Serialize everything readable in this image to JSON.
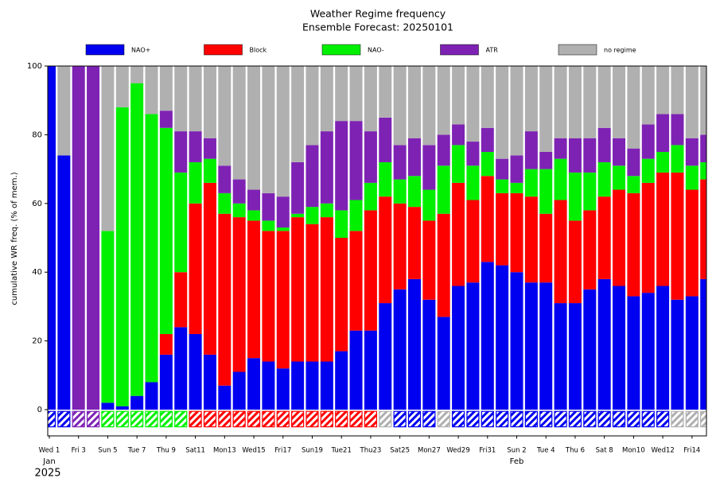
{
  "chart_data": {
    "type": "stacked-bar",
    "title": "Weather Regime frequency",
    "subtitle": "Ensemble Forecast: 20250101",
    "y_label": "cumulative WR freq. (% of mem.)",
    "categories": [
      "Wed 1",
      null,
      "Fri 3",
      null,
      "Sun 5",
      null,
      "Tue 7",
      null,
      "Thu 9",
      null,
      "Sat11",
      null,
      "Mon13",
      null,
      "Wed15",
      null,
      "Fri17",
      null,
      "Sun19",
      null,
      "Tue21",
      null,
      "Thu23",
      null,
      "Sat25",
      null,
      "Mon27",
      null,
      "Wed29",
      null,
      "Fri31",
      null,
      "Sun 2",
      null,
      "Tue 4",
      null,
      "Thu 6",
      null,
      "Sat 8",
      null,
      "Mon10",
      null,
      "Wed12",
      null,
      "Fri14",
      null
    ],
    "category_label_colors": [
      "#000",
      null,
      "#000",
      null,
      "#e00000",
      null,
      "#000",
      null,
      "#000",
      null,
      "#000",
      null,
      "#000",
      null,
      "#000",
      null,
      "#000",
      null,
      "#e00000",
      null,
      "#000",
      null,
      "#000",
      null,
      "#000",
      null,
      "#000",
      null,
      "#000",
      null,
      "#000",
      null,
      "#e00000",
      null,
      "#000",
      null,
      "#000",
      null,
      "#000",
      null,
      "#000",
      null,
      "#000",
      null,
      "#000",
      null
    ],
    "month_labels": [
      {
        "label": "Jan",
        "category": 0
      },
      {
        "label": "Feb",
        "category": 32
      }
    ],
    "year_label": "2025",
    "series": [
      {
        "name": "NAO+",
        "color": "#0000f0",
        "values": [
          100,
          74,
          0,
          0,
          2,
          1,
          4,
          8,
          16,
          24,
          22,
          16,
          7,
          11,
          15,
          14,
          12,
          14,
          14,
          14,
          17,
          23,
          23,
          31,
          35,
          38,
          32,
          27,
          36,
          37,
          43,
          42,
          40,
          37,
          37,
          31,
          31,
          35,
          38,
          36,
          33,
          34,
          36,
          32,
          33,
          38
        ]
      },
      {
        "name": "Block",
        "color": "#ff0000",
        "values": [
          0,
          0,
          0,
          0,
          0,
          0,
          0,
          0,
          6,
          16,
          38,
          50,
          50,
          45,
          40,
          38,
          40,
          42,
          40,
          42,
          33,
          29,
          35,
          31,
          25,
          21,
          23,
          30,
          30,
          24,
          25,
          21,
          23,
          25,
          20,
          30,
          24,
          23,
          24,
          28,
          30,
          32,
          33,
          37,
          31,
          29
        ]
      },
      {
        "name": "NAO-",
        "color": "#00f000",
        "values": [
          0,
          0,
          0,
          0,
          50,
          87,
          91,
          78,
          60,
          29,
          12,
          7,
          6,
          4,
          3,
          3,
          1,
          1,
          5,
          4,
          8,
          9,
          8,
          10,
          7,
          9,
          9,
          14,
          11,
          10,
          7,
          4,
          3,
          8,
          13,
          12,
          14,
          11,
          10,
          7,
          5,
          7,
          6,
          8,
          7,
          5
        ]
      },
      {
        "name": "ATR",
        "color": "#7e22b4",
        "values": [
          0,
          0,
          100,
          100,
          0,
          0,
          0,
          0,
          5,
          12,
          9,
          6,
          8,
          7,
          6,
          8,
          9,
          15,
          18,
          21,
          26,
          23,
          15,
          13,
          10,
          11,
          13,
          9,
          6,
          7,
          7,
          6,
          8,
          11,
          5,
          6,
          10,
          10,
          10,
          8,
          8,
          10,
          11,
          9,
          8,
          8
        ]
      },
      {
        "name": "no regime",
        "color": "#b0b0b0",
        "values": [
          0,
          26,
          0,
          0,
          48,
          12,
          5,
          14,
          13,
          19,
          19,
          21,
          29,
          33,
          36,
          37,
          38,
          28,
          23,
          19,
          16,
          16,
          19,
          15,
          23,
          21,
          23,
          20,
          17,
          22,
          18,
          27,
          26,
          19,
          25,
          21,
          21,
          21,
          18,
          21,
          24,
          17,
          14,
          14,
          21,
          20
        ]
      }
    ],
    "regime_strip": [
      "NAO+",
      "NAO+",
      "ATR",
      "ATR",
      "NAO-",
      "NAO-",
      "NAO-",
      "NAO-",
      "NAO-",
      "NAO-",
      "Block",
      "Block",
      "Block",
      "Block",
      "Block",
      "Block",
      "Block",
      "Block",
      "Block",
      "Block",
      "Block",
      "Block",
      "Block",
      "no regime",
      "NAO+",
      "NAO+",
      "NAO+",
      "no regime",
      "NAO+",
      "NAO+",
      "NAO+",
      "NAO+",
      "NAO+",
      "NAO+",
      "NAO+",
      "NAO+",
      "NAO+",
      "NAO+",
      "NAO+",
      "NAO+",
      "NAO+",
      "NAO+",
      "NAO+",
      "no regime",
      "no regime",
      "no regime"
    ],
    "ylim": [
      -7.5,
      100
    ],
    "yticks": [
      0,
      20,
      40,
      60,
      80,
      100
    ]
  }
}
